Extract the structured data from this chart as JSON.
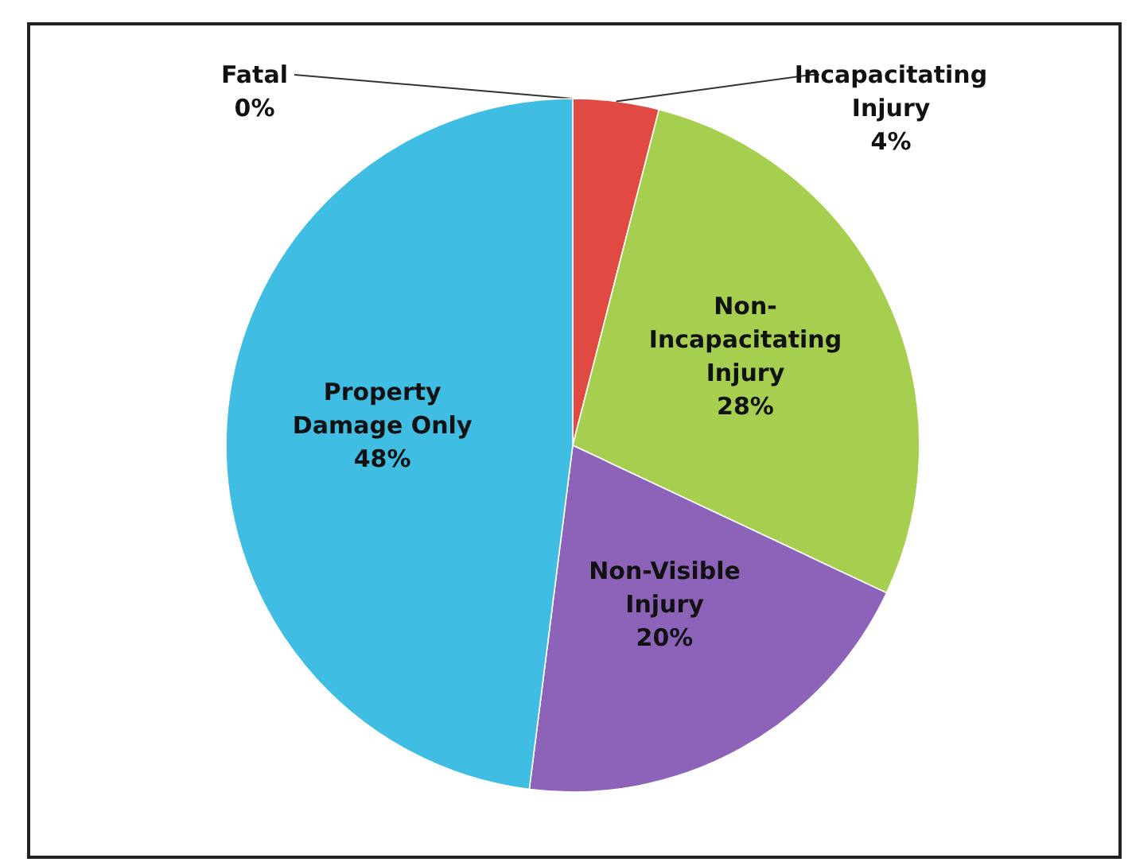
{
  "chart_data": {
    "type": "pie",
    "categories": [
      "Fatal",
      "Incapacitating Injury",
      "Non-Incapacitating Injury",
      "Non-Visible Injury",
      "Property Damage Only"
    ],
    "values": [
      0,
      4,
      28,
      20,
      48
    ],
    "colors": [
      "#c0504d",
      "#e04a43",
      "#a6cf4f",
      "#8c63b8",
      "#3fbde2"
    ],
    "value_labels": [
      "0%",
      "4%",
      "28%",
      "20%",
      "48%"
    ]
  }
}
